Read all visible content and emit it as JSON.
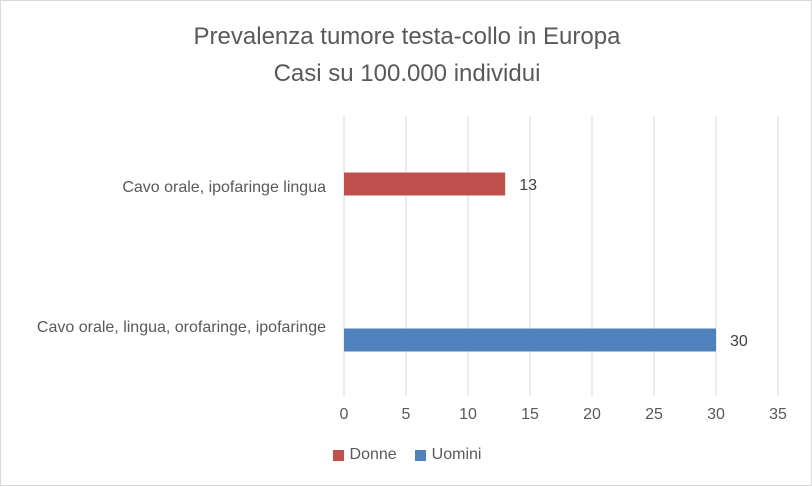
{
  "chart_data": {
    "type": "bar",
    "orientation": "horizontal",
    "title": "Prevalenza tumore testa-collo in Europa",
    "subtitle": "Casi su 100.000 individui",
    "categories": [
      "Cavo orale, ipofaringe lingua",
      "Cavo orale, lingua, orofaringe, ipofaringe"
    ],
    "series": [
      {
        "name": "Donne",
        "color": "#c0504d",
        "values": [
          13,
          null
        ]
      },
      {
        "name": "Uomini",
        "color": "#4f81bd",
        "values": [
          null,
          30
        ]
      }
    ],
    "xlim": [
      0,
      35
    ],
    "xticks": [
      0,
      5,
      10,
      15,
      20,
      25,
      30,
      35
    ],
    "grid": "vertical",
    "legend_position": "bottom",
    "data_labels": true
  }
}
